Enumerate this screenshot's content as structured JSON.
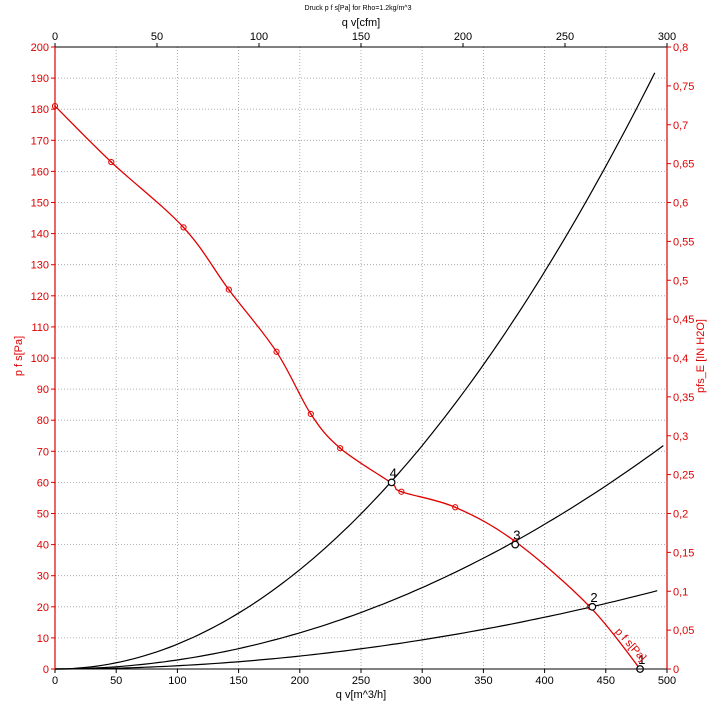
{
  "chart_data": {
    "type": "line",
    "title": "Druck p f s[Pa] for Rho=1.2kg/m^3",
    "xlabel": "q v[m^3/h]",
    "x2label": "q v[cfm]",
    "ylabel": "p  f  s[Pa]",
    "y2label": "pfs_E [IN H2O]",
    "xlim": [
      0,
      500
    ],
    "x2lim": [
      0,
      300
    ],
    "ylim": [
      0,
      200
    ],
    "y2lim": [
      0,
      0.8
    ],
    "grid": true,
    "x_ticks": [
      "0",
      "50",
      "100",
      "150",
      "200",
      "250",
      "300",
      "350",
      "400",
      "450",
      "500"
    ],
    "x2_ticks": [
      "0",
      "50",
      "100",
      "150",
      "200",
      "250",
      "300"
    ],
    "y_ticks": [
      "0",
      "10",
      "20",
      "30",
      "40",
      "50",
      "60",
      "70",
      "80",
      "90",
      "100",
      "110",
      "120",
      "130",
      "140",
      "150",
      "160",
      "170",
      "180",
      "190",
      "200"
    ],
    "y2_ticks": [
      "0",
      "0,05",
      "0,1",
      "0,15",
      "0,2",
      "0,25",
      "0,3",
      "0,35",
      "0,4",
      "0,45",
      "0,5",
      "0,55",
      "0,6",
      "0,65",
      "0,7",
      "0,75",
      "0,8"
    ],
    "curve_label": "p f s[Pa]",
    "fan_curve": {
      "color": "#e00000",
      "x": [
        0,
        46,
        105,
        142,
        181,
        209,
        233,
        274,
        283,
        327,
        376,
        437,
        478
      ],
      "y": [
        181,
        163,
        142,
        122,
        102,
        82,
        71,
        60,
        57,
        52,
        41,
        20,
        0
      ],
      "markers_x": [
        0,
        46,
        105,
        142,
        181,
        209,
        233,
        283,
        327,
        376,
        437,
        478
      ],
      "markers_y": [
        181,
        163,
        142,
        122,
        102,
        82,
        71,
        57,
        52,
        41,
        20,
        0
      ]
    },
    "system_curves": [
      {
        "color": "#000000",
        "k": 0.0007984,
        "x_max": 490
      },
      {
        "color": "#000000",
        "k": 0.0002908,
        "x_max": 497
      },
      {
        "color": "#000000",
        "k": 0.000104,
        "x_max": 492
      }
    ],
    "operating_points": [
      {
        "label": "1",
        "x": 478,
        "y": 0
      },
      {
        "label": "2",
        "x": 439,
        "y": 20
      },
      {
        "label": "3",
        "x": 376,
        "y": 40
      },
      {
        "label": "4",
        "x": 275,
        "y": 60
      }
    ]
  }
}
